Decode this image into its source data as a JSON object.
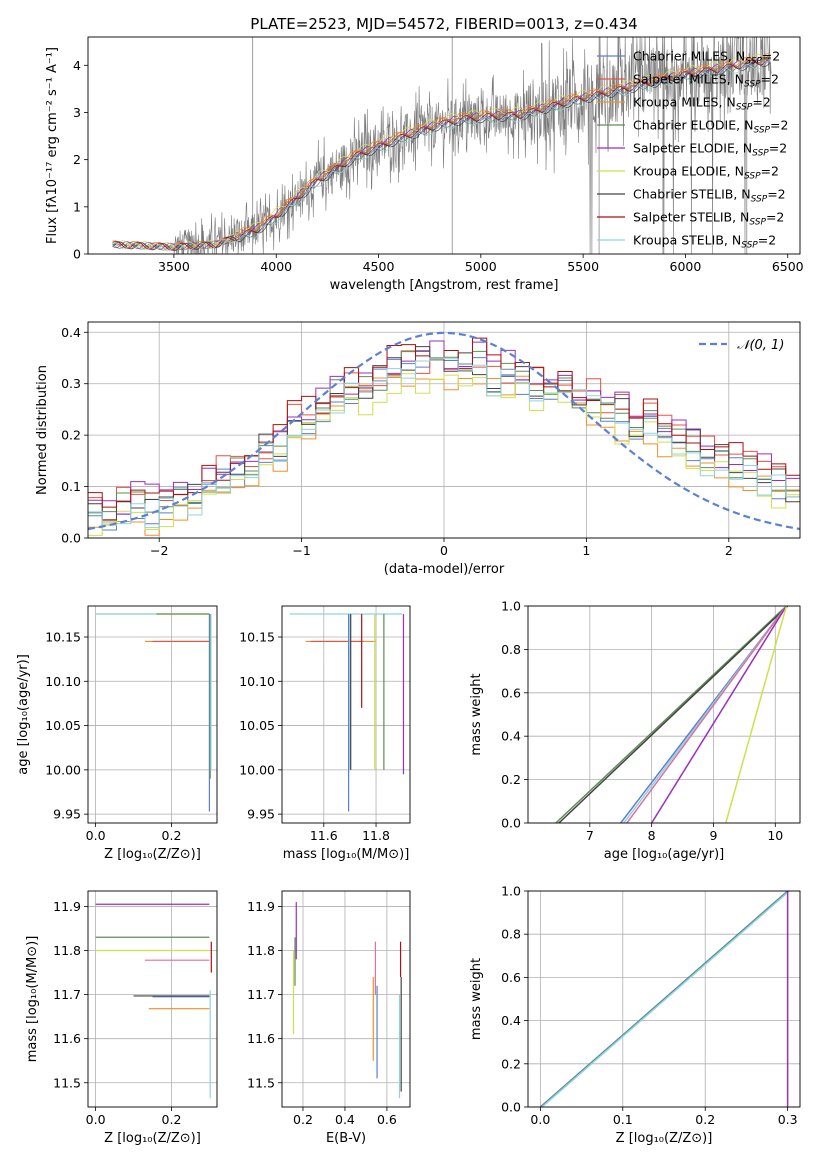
{
  "figure": {
    "title": "PLATE=2523, MJD=54572, FIBERID=0013, z=0.434",
    "colors": {
      "Chabrier MILES": "#5a7fcf",
      "Salpeter MILES": "#e8533f",
      "Kroupa MILES": "#f0902a",
      "Chabrier ELODIE": "#5e8e55",
      "Salpeter ELODIE": "#9b2ec0",
      "Kroupa ELODIE": "#cfe14a",
      "Chabrier STELIB": "#444444",
      "Salpeter STELIB": "#a8120f",
      "Kroupa STELIB": "#8fd3df",
      "pink": "#e06f9e",
      "data": "#7a7a7a",
      "normal": "#5a82d4"
    }
  },
  "chart_data": [
    {
      "id": "spectrum",
      "type": "line",
      "xlabel": "wavelength [Angstrom, rest frame]",
      "ylabel": "Flux [fλ10⁻¹⁷ erg cm⁻² s⁻¹ A⁻¹]",
      "xlim": [
        3080,
        6560
      ],
      "ylim": [
        0,
        4.6
      ],
      "xticks": [
        3500,
        4000,
        4500,
        5000,
        5500,
        6000,
        6500
      ],
      "yticks": [
        0,
        1,
        2,
        3,
        4
      ],
      "grid": false,
      "legend_position": "upper-right",
      "legend": [
        {
          "name": "Chabrier MILES",
          "sub": "SSP",
          "suffix": "=2"
        },
        {
          "name": "Salpeter MILES",
          "sub": "SSP",
          "suffix": "=2"
        },
        {
          "name": "Kroupa MILES",
          "sub": "SSP",
          "suffix": "=2"
        },
        {
          "name": "Chabrier ELODIE",
          "sub": "SSP",
          "suffix": "=2"
        },
        {
          "name": "Salpeter ELODIE",
          "sub": "SSP",
          "suffix": "=2"
        },
        {
          "name": "Kroupa ELODIE",
          "sub": "SSP",
          "suffix": "=2"
        },
        {
          "name": "Chabrier STELIB",
          "sub": "SSP",
          "suffix": "=2"
        },
        {
          "name": "Salpeter STELIB",
          "sub": "SSP",
          "suffix": "=2"
        },
        {
          "name": "Kroupa STELIB",
          "sub": "SSP",
          "suffix": "=2"
        }
      ],
      "model_continuum": {
        "x": [
          3200,
          3500,
          3700,
          3900,
          4000,
          4200,
          4400,
          4600,
          4800,
          4900,
          5000,
          5200,
          5400,
          5600,
          5800,
          6000,
          6200,
          6400
        ],
        "y": [
          0.2,
          0.15,
          0.2,
          0.5,
          0.8,
          1.55,
          2.1,
          2.45,
          2.75,
          2.85,
          2.9,
          2.95,
          3.2,
          3.4,
          3.6,
          3.8,
          3.95,
          4.1
        ]
      },
      "data_spectrum_range": [
        3200,
        6420
      ],
      "spike_positions": [
        3885,
        4860,
        5578,
        5890,
        6300
      ]
    },
    {
      "id": "residuals",
      "type": "line",
      "xlabel": "(data-model)/error",
      "ylabel": "Normed distribution",
      "xlim": [
        -2.5,
        2.5
      ],
      "ylim": [
        0,
        0.42
      ],
      "xticks": [
        -2,
        -1,
        0,
        1,
        2
      ],
      "yticks": [
        0.0,
        0.1,
        0.2,
        0.3,
        0.4
      ],
      "grid": true,
      "legend_position": "upper-right",
      "legend": [
        "𝒩(0, 1)"
      ],
      "normal_curve": {
        "mean": 0,
        "sigma": 1
      },
      "hist_base_x": [
        -2.5,
        -2.4,
        -2.3,
        -2.2,
        -2.1,
        -2.0,
        -1.9,
        -1.8,
        -1.7,
        -1.6,
        -1.5,
        -1.4,
        -1.3,
        -1.2,
        -1.1,
        -1.0,
        -0.9,
        -0.8,
        -0.7,
        -0.6,
        -0.5,
        -0.4,
        -0.3,
        -0.2,
        -0.1,
        0.0,
        0.1,
        0.2,
        0.3,
        0.4,
        0.5,
        0.6,
        0.7,
        0.8,
        0.9,
        1.0,
        1.1,
        1.2,
        1.3,
        1.4,
        1.5,
        1.6,
        1.7,
        1.8,
        1.9,
        2.0,
        2.1,
        2.2,
        2.3,
        2.4,
        2.5
      ],
      "hist_base_y": [
        0.03,
        0.04,
        0.05,
        0.06,
        0.05,
        0.05,
        0.07,
        0.07,
        0.1,
        0.11,
        0.12,
        0.13,
        0.16,
        0.17,
        0.21,
        0.22,
        0.24,
        0.27,
        0.28,
        0.28,
        0.3,
        0.32,
        0.33,
        0.33,
        0.34,
        0.33,
        0.32,
        0.33,
        0.3,
        0.31,
        0.3,
        0.29,
        0.28,
        0.29,
        0.27,
        0.26,
        0.25,
        0.23,
        0.21,
        0.22,
        0.2,
        0.18,
        0.17,
        0.15,
        0.14,
        0.13,
        0.12,
        0.11,
        0.1,
        0.08,
        0.07
      ]
    },
    {
      "id": "age-vs-Z",
      "type": "line",
      "xlabel": "Z [log₁₀(Z/Z⊙)]",
      "ylabel": "age  [log₁₀(age/yr)]",
      "xlim": [
        -0.02,
        0.32
      ],
      "ylim": [
        9.94,
        10.185
      ],
      "xticks": [
        0.0,
        0.2
      ],
      "yticks": [
        9.95,
        10.0,
        10.05,
        10.1,
        10.15
      ],
      "grid": true,
      "segments_h": [
        {
          "series": "Kroupa ELODIE",
          "y": 10.176,
          "x0": 0.0,
          "x1": 0.3
        },
        {
          "series": "Chabrier ELODIE",
          "y": 10.176,
          "x0": 0.16,
          "x1": 0.3
        },
        {
          "series": "Kroupa STELIB",
          "y": 10.176,
          "x0": 0.0,
          "x1": 0.16
        },
        {
          "series": "Kroupa MILES",
          "y": 10.145,
          "x0": 0.13,
          "x1": 0.3
        },
        {
          "series": "Salpeter MILES",
          "y": 10.145,
          "x0": 0.15,
          "x1": 0.3
        }
      ],
      "segments_v": [
        {
          "series": "Chabrier MILES",
          "x": 0.3,
          "y0": 9.953,
          "y1": 10.176
        },
        {
          "series": "Chabrier ELODIE",
          "x": 0.302,
          "y0": 9.99,
          "y1": 10.176
        },
        {
          "series": "Kroupa STELIB",
          "x": 0.304,
          "y0": 10.0,
          "y1": 10.176
        }
      ]
    },
    {
      "id": "age-vs-mass",
      "type": "line",
      "xlabel": "mass [log₁₀(M/M⊙)]",
      "ylabel": "",
      "xlim": [
        11.44,
        11.93
      ],
      "ylim": [
        9.94,
        10.185
      ],
      "xticks": [
        11.6,
        11.8
      ],
      "yticks": [
        9.95,
        10.0,
        10.05,
        10.1,
        10.15
      ],
      "grid": true,
      "segments_h": [
        {
          "series": "Kroupa STELIB",
          "y": 10.176,
          "x0": 11.47,
          "x1": 11.9
        },
        {
          "series": "Kroupa MILES",
          "y": 10.145,
          "x0": 11.53,
          "x1": 11.8
        },
        {
          "series": "Salpeter MILES",
          "y": 10.145,
          "x0": 11.55,
          "x1": 11.75
        }
      ],
      "segments_v": [
        {
          "series": "Chabrier MILES",
          "x": 11.695,
          "y0": 9.953,
          "y1": 10.176
        },
        {
          "series": "Kroupa STELIB",
          "x": 11.7,
          "y0": 10.0,
          "y1": 10.176
        },
        {
          "series": "Chabrier STELIB",
          "x": 11.703,
          "y0": 10.0,
          "y1": 10.176
        },
        {
          "series": "Salpeter STELIB",
          "x": 11.745,
          "y0": 10.07,
          "y1": 10.176
        },
        {
          "series": "Kroupa ELODIE",
          "x": 11.795,
          "y0": 10.0,
          "y1": 10.176
        },
        {
          "series": "Chabrier ELODIE",
          "x": 11.83,
          "y0": 10.0,
          "y1": 10.176
        },
        {
          "series": "Salpeter ELODIE",
          "x": 11.905,
          "y0": 9.995,
          "y1": 10.176
        }
      ]
    },
    {
      "id": "age-mass-weight",
      "type": "line",
      "xlabel": "age  [log₁₀(age/yr)]",
      "ylabel": "mass weight",
      "xlim": [
        6.0,
        10.4
      ],
      "ylim": [
        0,
        1.0
      ],
      "xticks": [
        7,
        8,
        9,
        10
      ],
      "yticks": [
        0.0,
        0.2,
        0.4,
        0.6,
        0.8,
        1.0
      ],
      "grid": true,
      "lines": [
        {
          "series": "Chabrier ELODIE",
          "x": [
            6.45,
            10.18
          ],
          "y": [
            0,
            1
          ]
        },
        {
          "series": "Chabrier STELIB",
          "x": [
            6.5,
            10.2
          ],
          "y": [
            0,
            1
          ]
        },
        {
          "series": "Chabrier MILES",
          "x": [
            7.5,
            10.18
          ],
          "y": [
            0,
            1
          ]
        },
        {
          "series": "Kroupa STELIB",
          "x": [
            7.55,
            10.18
          ],
          "y": [
            0,
            1
          ]
        },
        {
          "series": "pink",
          "x": [
            7.6,
            10.18
          ],
          "y": [
            0,
            1
          ]
        },
        {
          "series": "Salpeter ELODIE",
          "x": [
            8.0,
            10.18
          ],
          "y": [
            0,
            1
          ]
        },
        {
          "series": "Kroupa ELODIE",
          "x": [
            9.2,
            10.18
          ],
          "y": [
            0,
            1
          ]
        }
      ]
    },
    {
      "id": "mass-vs-Z",
      "type": "line",
      "xlabel": "Z [log₁₀(Z/Z⊙)]",
      "ylabel": "mass [log₁₀(M/M⊙)]",
      "xlim": [
        -0.02,
        0.32
      ],
      "ylim": [
        11.445,
        11.935
      ],
      "xticks": [
        0.0,
        0.2
      ],
      "yticks": [
        11.5,
        11.6,
        11.7,
        11.8,
        11.9
      ],
      "grid": true,
      "segments_h": [
        {
          "series": "Salpeter ELODIE",
          "y": 11.905,
          "x0": 0.0,
          "x1": 0.3
        },
        {
          "series": "Chabrier ELODIE",
          "y": 11.83,
          "x0": 0.0,
          "x1": 0.3
        },
        {
          "series": "Kroupa ELODIE",
          "y": 11.8,
          "x0": 0.0,
          "x1": 0.3
        },
        {
          "series": "pink",
          "y": 11.778,
          "x0": 0.13,
          "x1": 0.3
        },
        {
          "series": "Chabrier MILES",
          "y": 11.695,
          "x0": 0.15,
          "x1": 0.3
        },
        {
          "series": "Chabrier STELIB",
          "y": 11.697,
          "x0": 0.1,
          "x1": 0.3
        },
        {
          "series": "Kroupa MILES",
          "y": 11.668,
          "x0": 0.14,
          "x1": 0.3
        }
      ],
      "segments_v": [
        {
          "series": "Kroupa STELIB",
          "x": 0.302,
          "y0": 11.465,
          "y1": 11.71
        },
        {
          "series": "Salpeter STELIB",
          "x": 0.305,
          "y0": 11.75,
          "y1": 11.82
        }
      ]
    },
    {
      "id": "mass-vs-EBV",
      "type": "line",
      "xlabel": "E(B-V)",
      "ylabel": "",
      "xlim": [
        0.1,
        0.71
      ],
      "ylim": [
        11.445,
        11.935
      ],
      "xticks": [
        0.2,
        0.4,
        0.6
      ],
      "yticks": [
        11.5,
        11.6,
        11.7,
        11.8,
        11.9
      ],
      "grid": true,
      "segments_v": [
        {
          "series": "Kroupa ELODIE",
          "x": 0.155,
          "y0": 11.61,
          "y1": 11.8
        },
        {
          "series": "Chabrier ELODIE",
          "x": 0.162,
          "y0": 11.72,
          "y1": 11.83
        },
        {
          "series": "Salpeter ELODIE",
          "x": 0.168,
          "y0": 11.78,
          "y1": 11.91
        },
        {
          "series": "Kroupa MILES",
          "x": 0.535,
          "y0": 11.55,
          "y1": 11.74
        },
        {
          "series": "pink",
          "x": 0.545,
          "y0": 11.7,
          "y1": 11.82
        },
        {
          "series": "Chabrier MILES",
          "x": 0.553,
          "y0": 11.51,
          "y1": 11.72
        },
        {
          "series": "Kroupa STELIB",
          "x": 0.66,
          "y0": 11.465,
          "y1": 11.7
        },
        {
          "series": "Salpeter STELIB",
          "x": 0.665,
          "y0": 11.74,
          "y1": 11.82
        },
        {
          "series": "Chabrier STELIB",
          "x": 0.668,
          "y0": 11.48,
          "y1": 11.74
        }
      ]
    },
    {
      "id": "Z-mass-weight",
      "type": "line",
      "xlabel": "Z [log₁₀(Z/Z⊙)]",
      "ylabel": "mass weight",
      "xlim": [
        -0.015,
        0.315
      ],
      "ylim": [
        0,
        1.0
      ],
      "xticks": [
        0.0,
        0.1,
        0.2,
        0.3
      ],
      "yticks": [
        0.0,
        0.2,
        0.4,
        0.6,
        0.8,
        1.0
      ],
      "grid": true,
      "lines": [
        {
          "series": "Chabrier ELODIE",
          "x": [
            0.0,
            0.3
          ],
          "y": [
            0,
            1
          ]
        },
        {
          "series": "Chabrier MILES",
          "x": [
            0.001,
            0.301
          ],
          "y": [
            0,
            1
          ]
        },
        {
          "series": "Kroupa STELIB",
          "x": [
            0.002,
            0.302
          ],
          "y": [
            0,
            1
          ]
        },
        {
          "series": "Salpeter ELODIE",
          "x": [
            0.3,
            0.3
          ],
          "y": [
            0,
            1
          ]
        }
      ]
    }
  ]
}
